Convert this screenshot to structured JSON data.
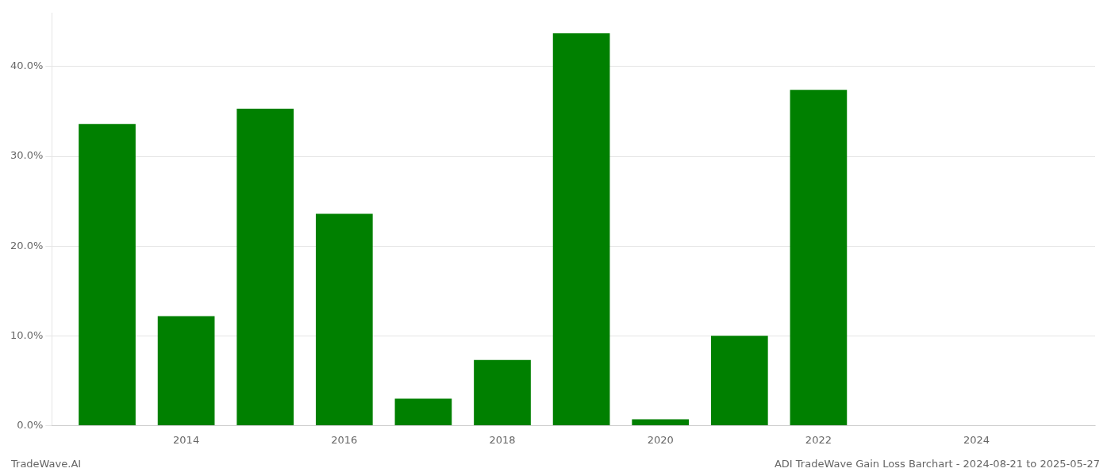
{
  "chart_data": {
    "type": "bar",
    "title": "ADI TradeWave Gain Loss Barchart - 2024-08-21 to 2025-05-27",
    "annotations": [
      "TradeWave.AI"
    ],
    "x": [
      2013,
      2014,
      2015,
      2016,
      2017,
      2018,
      2019,
      2020,
      2021,
      2022,
      2023,
      2024
    ],
    "values": [
      0.336,
      0.122,
      0.353,
      0.236,
      0.03,
      0.073,
      0.437,
      0.007,
      0.1,
      0.374,
      0.0,
      0.0
    ],
    "color": "#008000",
    "xlim": [
      2012.3,
      2025.5
    ],
    "xticks": [
      2014,
      2016,
      2018,
      2020,
      2022,
      2024
    ],
    "ylim": [
      0,
      0.46
    ],
    "yticks": [
      {
        "value": 0.0,
        "label": "0.0%"
      },
      {
        "value": 0.1,
        "label": "10.0%"
      },
      {
        "value": 0.2,
        "label": "20.0%"
      },
      {
        "value": 0.3,
        "label": "30.0%"
      },
      {
        "value": 0.4,
        "label": "40.0%"
      }
    ],
    "grid": true
  }
}
